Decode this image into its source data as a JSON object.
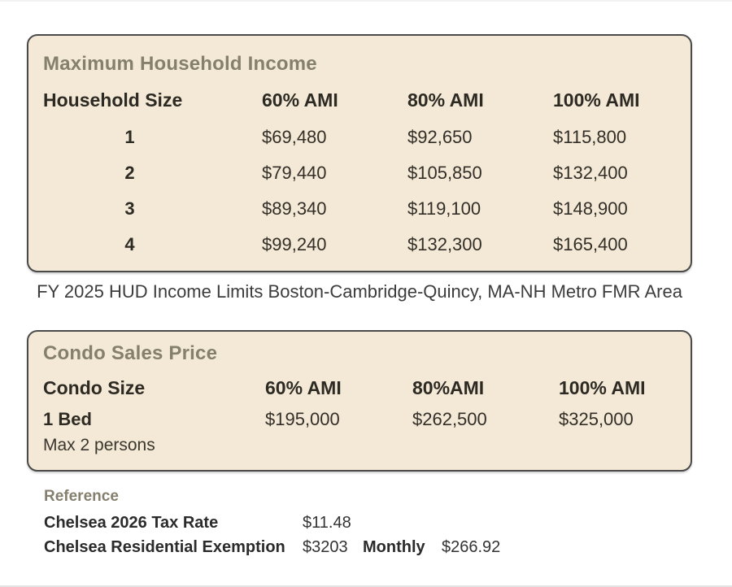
{
  "income_table": {
    "title": "Maximum Household Income",
    "headers": [
      "Household Size",
      "60% AMI",
      "80% AMI",
      "100% AMI"
    ],
    "rows": [
      {
        "size": "1",
        "ami60": "$69,480",
        "ami80": "$92,650",
        "ami100": "$115,800"
      },
      {
        "size": "2",
        "ami60": "$79,440",
        "ami80": "$105,850",
        "ami100": "$132,400"
      },
      {
        "size": "3",
        "ami60": "$89,340",
        "ami80": "$119,100",
        "ami100": "$148,900"
      },
      {
        "size": "4",
        "ami60": "$99,240",
        "ami80": "$132,300",
        "ami100": "$165,400"
      }
    ]
  },
  "caption": "FY 2025 HUD Income Limits Boston-Cambridge-Quincy, MA-NH Metro FMR Area",
  "condo_table": {
    "title": "Condo Sales Price",
    "headers": [
      "Condo Size",
      "60% AMI",
      "80%AMI",
      "100% AMI"
    ],
    "rows": [
      {
        "size": "1 Bed",
        "note": "Max 2 persons",
        "ami60": "$195,000",
        "ami80": "$262,500",
        "ami100": "$325,000"
      }
    ]
  },
  "reference": {
    "title": "Reference",
    "rows": [
      {
        "label": "Chelsea 2026 Tax Rate",
        "value": "$11.48"
      },
      {
        "label": "Chelsea Residential Exemption",
        "value": "$3203",
        "extra_label": "Monthly",
        "extra_value": "$266.92"
      }
    ]
  },
  "colors": {
    "panel_background": "#f3e9d6",
    "panel_border": "#4a4a4a",
    "title_gray": "#857f6e",
    "text_dark": "#2d2a24",
    "page_background": "#ffffff"
  }
}
